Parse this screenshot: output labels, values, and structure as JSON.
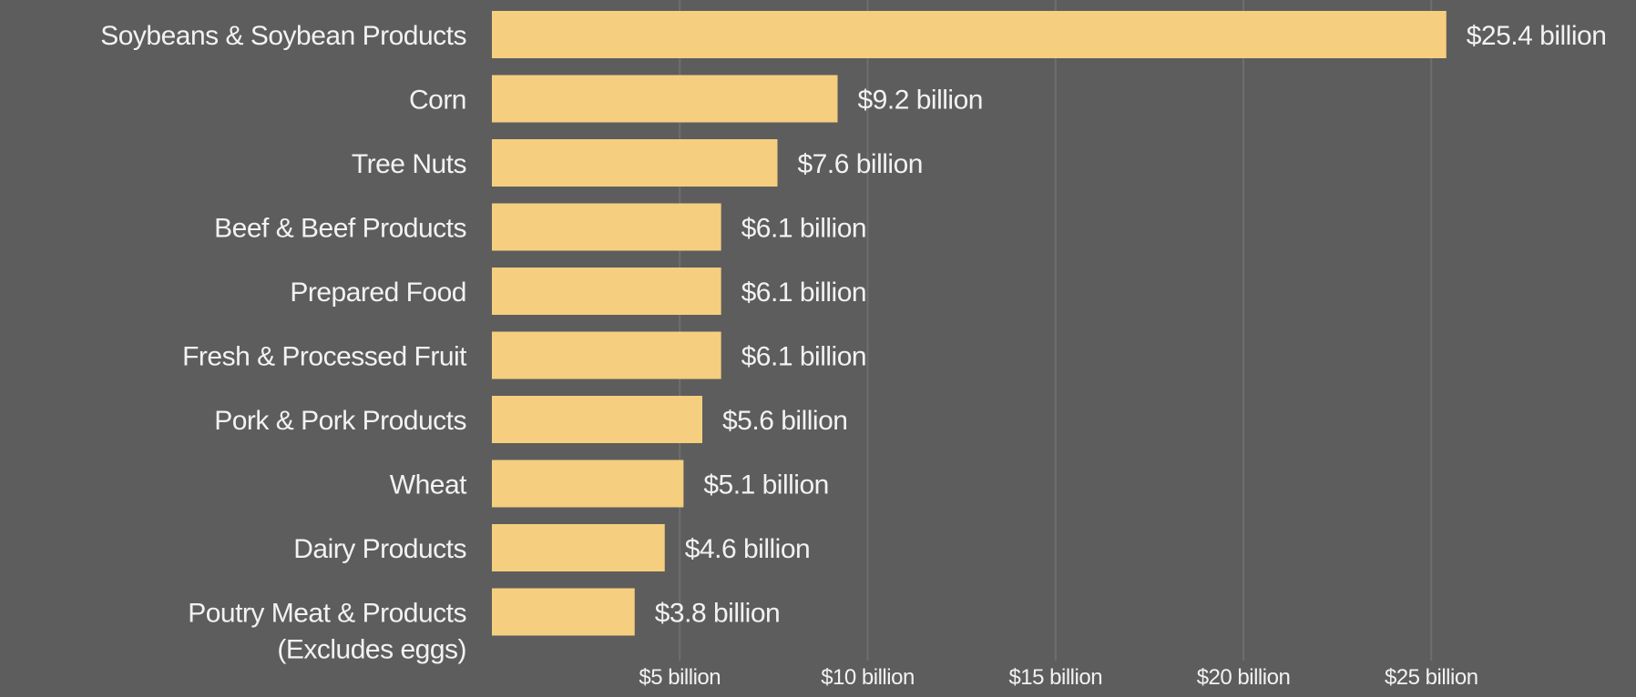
{
  "chart_data": {
    "type": "bar",
    "orientation": "horizontal",
    "categories": [
      [
        "Soybeans & Soybean Products"
      ],
      [
        "Corn"
      ],
      [
        "Tree Nuts"
      ],
      [
        "Beef & Beef Products"
      ],
      [
        "Prepared Food"
      ],
      [
        "Fresh & Processed Fruit"
      ],
      [
        "Pork & Pork Products"
      ],
      [
        "Wheat"
      ],
      [
        "Dairy Products"
      ],
      [
        "Poutry Meat & Products",
        "(Excludes eggs)"
      ]
    ],
    "values": [
      25.4,
      9.2,
      7.6,
      6.1,
      6.1,
      6.1,
      5.6,
      5.1,
      4.6,
      3.8
    ],
    "value_labels": [
      "$25.4 billion",
      "$9.2 billion",
      "$7.6 billion",
      "$6.1 billion",
      "$6.1 billion",
      "$6.1 billion",
      "$5.6 billion",
      "$5.1 billion",
      "$4.6 billion",
      "$3.8 billion"
    ],
    "x_ticks": [
      5,
      10,
      15,
      20,
      25
    ],
    "x_tick_labels": [
      "$5 billion",
      "$10 billion",
      "$15 billion",
      "$20 billion",
      "$25 billion"
    ],
    "xlim": [
      0,
      25
    ],
    "grid": "vertical",
    "legend": "none",
    "colors": {
      "background": "#5d5d5d",
      "bar": "#f5cf7f",
      "text": "#f2f2f2",
      "grid": "#6e6e6e"
    }
  }
}
